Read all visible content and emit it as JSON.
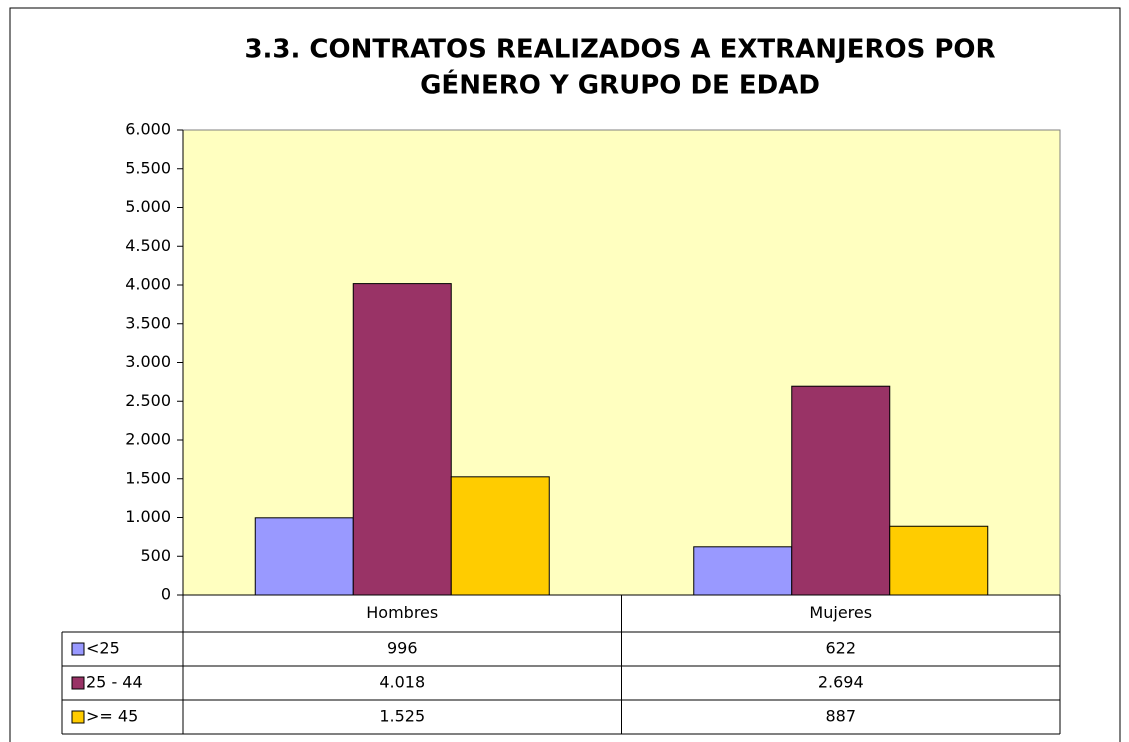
{
  "chart_data": {
    "type": "bar",
    "title": [
      "3.3. CONTRATOS REALIZADOS A EXTRANJEROS POR",
      "GÉNERO Y GRUPO DE EDAD"
    ],
    "categories": [
      "Hombres",
      "Mujeres"
    ],
    "series": [
      {
        "name": "<25",
        "color": "#9999ff",
        "values": [
          996,
          622
        ],
        "value_labels": [
          "996",
          "622"
        ]
      },
      {
        "name": "25 - 44",
        "color": "#993366",
        "values": [
          4018,
          2694
        ],
        "value_labels": [
          "4.018",
          "2.694"
        ]
      },
      {
        "name": ">= 45",
        "color": "#ffcc00",
        "values": [
          1525,
          887
        ],
        "value_labels": [
          "1.525",
          "887"
        ]
      }
    ],
    "ylim": [
      0,
      6000
    ],
    "yticks": [
      0,
      500,
      {
        "value": 1000,
        "label": "1.000"
      },
      {
        "value": 1500,
        "label": "1.500"
      },
      {
        "value": 2000,
        "label": "2.000"
      },
      {
        "value": 2500,
        "label": "2.500"
      },
      {
        "value": 3000,
        "label": "3.000"
      },
      {
        "value": 3500,
        "label": "3.500"
      },
      {
        "value": 4000,
        "label": "4.000"
      },
      {
        "value": 4500,
        "label": "4.500"
      },
      {
        "value": 5000,
        "label": "5.000"
      },
      {
        "value": 5500,
        "label": "5.500"
      },
      {
        "value": 6000,
        "label": "6.000"
      }
    ],
    "grid": false
  }
}
